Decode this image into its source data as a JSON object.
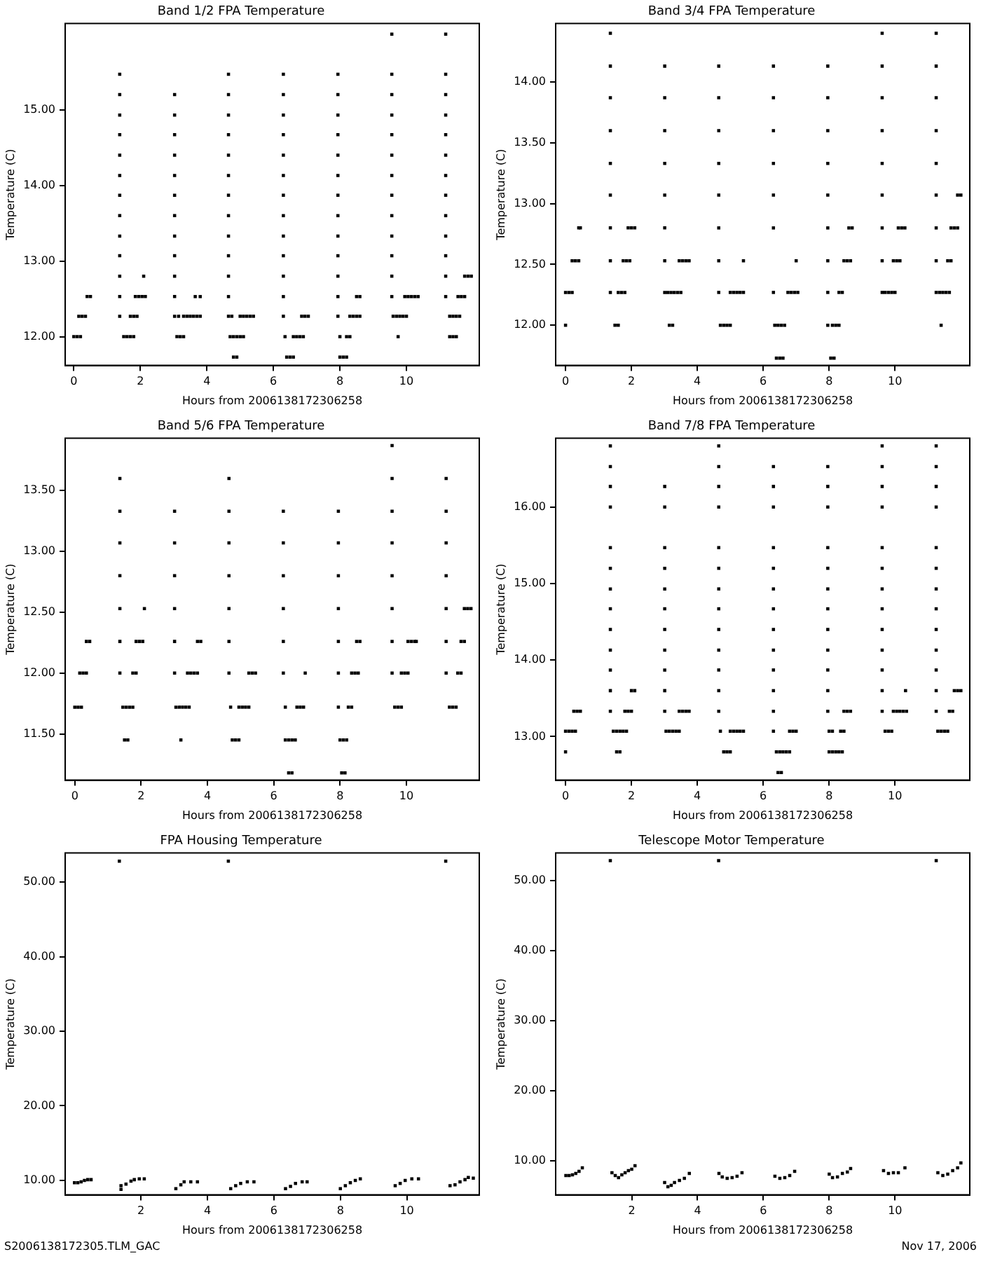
{
  "chart_data": [
    {
      "type": "scatter",
      "title": "Band 1/2 FPA Temperature",
      "xlabel": "Hours from 2006138172306258",
      "ylabel": "Temperature (C)",
      "marker": "square",
      "legend": false,
      "xlim": [
        -0.26,
        12.19
      ],
      "xticks": [
        0,
        2,
        4,
        6,
        8,
        10
      ],
      "ylim": [
        11.62,
        16.14
      ],
      "yticks": [
        {
          "value": 12,
          "label": "12.00"
        },
        {
          "value": 13,
          "label": "13.00"
        },
        {
          "value": 14,
          "label": "14.00"
        },
        {
          "value": 15,
          "label": "15.00"
        }
      ],
      "series": [
        {
          "color": "#000000",
          "x": [
            0,
            0.1,
            0.2,
            0.15,
            0.25,
            0.35,
            0.4,
            0.5,
            1.38,
            1.38,
            1.38,
            1.38,
            1.38,
            1.38,
            1.38,
            1.38,
            1.38,
            1.38,
            1.38,
            1.38,
            1.38,
            1.5,
            1.6,
            1.7,
            1.8,
            1.7,
            1.8,
            1.9,
            1.85,
            1.95,
            2.05,
            2.15,
            2.1,
            3.03,
            3.03,
            3.03,
            3.03,
            3.03,
            3.03,
            3.03,
            3.03,
            3.03,
            3.03,
            3.03,
            3.03,
            3.1,
            3.2,
            3.3,
            3.15,
            3.3,
            3.4,
            3.5,
            3.6,
            3.7,
            3.8,
            3.65,
            3.8,
            4.65,
            4.65,
            4.65,
            4.65,
            4.65,
            4.65,
            4.65,
            4.65,
            4.65,
            4.65,
            4.65,
            4.65,
            4.65,
            4.75,
            5.0,
            5.1,
            5.2,
            5.3,
            5.4,
            4.7,
            4.8,
            4.9,
            5.0,
            5.1,
            4.8,
            4.9,
            6.3,
            6.3,
            6.3,
            6.3,
            6.3,
            6.3,
            6.3,
            6.3,
            6.3,
            6.3,
            6.3,
            6.3,
            6.3,
            6.35,
            6.6,
            6.7,
            6.8,
            6.9,
            6.85,
            6.95,
            7.05,
            6.4,
            6.5,
            6.6,
            7.94,
            7.94,
            7.94,
            7.94,
            7.94,
            7.94,
            7.94,
            7.94,
            7.94,
            7.94,
            7.94,
            7.94,
            7.94,
            8.0,
            8.2,
            8.3,
            8.0,
            8.1,
            8.2,
            8.3,
            8.4,
            8.5,
            8.6,
            8.5,
            8.6,
            9.56,
            9.56,
            9.56,
            9.56,
            9.56,
            9.56,
            9.56,
            9.56,
            9.56,
            9.56,
            9.56,
            9.56,
            9.56,
            9.6,
            9.7,
            9.8,
            9.9,
            10.0,
            9.75,
            9.95,
            10.05,
            10.15,
            10.25,
            10.35,
            11.18,
            11.18,
            11.18,
            11.18,
            11.18,
            11.18,
            11.18,
            11.18,
            11.18,
            11.18,
            11.18,
            11.18,
            11.18,
            11.3,
            11.4,
            11.5,
            11.6,
            11.3,
            11.4,
            11.5,
            11.55,
            11.65,
            11.75,
            11.75,
            11.85,
            11.95
          ],
          "values": [
            12,
            12,
            12,
            12.27,
            12.27,
            12.27,
            12.53,
            12.53,
            15.47,
            15.2,
            14.93,
            14.67,
            14.4,
            14.13,
            13.87,
            13.6,
            13.33,
            13.07,
            12.8,
            12.53,
            12.27,
            12,
            12,
            12,
            12,
            12.27,
            12.27,
            12.27,
            12.53,
            12.53,
            12.53,
            12.53,
            12.8,
            15.2,
            14.93,
            14.67,
            14.4,
            14.13,
            13.87,
            13.6,
            13.33,
            13.07,
            12.8,
            12.53,
            12.27,
            12,
            12,
            12,
            12.27,
            12.27,
            12.27,
            12.27,
            12.27,
            12.27,
            12.27,
            12.53,
            12.53,
            15.47,
            15.2,
            14.93,
            14.67,
            14.4,
            14.13,
            13.87,
            13.6,
            13.33,
            13.07,
            12.8,
            12.53,
            12.27,
            12.27,
            12.27,
            12.27,
            12.27,
            12.27,
            12.27,
            12,
            12,
            12,
            12,
            12,
            11.73,
            11.73,
            15.47,
            15.2,
            14.93,
            14.67,
            14.4,
            14.13,
            13.87,
            13.6,
            13.33,
            13.07,
            12.8,
            12.53,
            12.27,
            12,
            12,
            12,
            12,
            12,
            12.27,
            12.27,
            12.27,
            11.73,
            11.73,
            11.73,
            15.47,
            15.2,
            14.93,
            14.67,
            14.4,
            14.13,
            13.87,
            13.6,
            13.33,
            13.07,
            12.8,
            12.53,
            12.27,
            12,
            12,
            12,
            11.73,
            11.73,
            11.73,
            12.27,
            12.27,
            12.27,
            12.27,
            12.53,
            12.53,
            16,
            15.47,
            15.2,
            14.93,
            14.67,
            14.4,
            14.13,
            13.87,
            13.6,
            13.33,
            13.07,
            12.8,
            12.53,
            12.27,
            12.27,
            12.27,
            12.27,
            12.27,
            12,
            12.53,
            12.53,
            12.53,
            12.53,
            12.53,
            16,
            15.47,
            15.2,
            14.93,
            14.67,
            14.4,
            14.13,
            13.87,
            13.6,
            13.33,
            13.07,
            12.8,
            12.53,
            12.27,
            12.27,
            12.27,
            12.27,
            12,
            12,
            12,
            12.53,
            12.53,
            12.53,
            12.8,
            12.8,
            12.8
          ]
        }
      ]
    },
    {
      "type": "scatter",
      "title": "Band 3/4 FPA Temperature",
      "xlabel": "Hours from 2006138172306258",
      "ylabel": "Temperature (C)",
      "marker": "square",
      "legend": false,
      "xlim": [
        -0.3,
        12.27
      ],
      "xticks": [
        0,
        2,
        4,
        6,
        8,
        10
      ],
      "ylim": [
        11.67,
        14.48
      ],
      "yticks": [
        {
          "value": 12,
          "label": "12.00"
        },
        {
          "value": 12.5,
          "label": "12.50"
        },
        {
          "value": 13,
          "label": "13.00"
        },
        {
          "value": 13.5,
          "label": "13.50"
        },
        {
          "value": 14,
          "label": "14.00"
        }
      ],
      "series": [
        {
          "color": "#000000",
          "x": [
            0,
            0,
            0.1,
            0.2,
            0.2,
            0.3,
            0.4,
            0.4,
            0.45,
            1.36,
            1.36,
            1.36,
            1.36,
            1.36,
            1.36,
            1.36,
            1.36,
            1.36,
            1.6,
            1.7,
            1.8,
            1.5,
            1.6,
            1.75,
            1.85,
            1.95,
            1.9,
            2.0,
            2.1,
            3.01,
            3.01,
            3.01,
            3.01,
            3.01,
            3.01,
            3.01,
            3.01,
            3.1,
            3.2,
            3.3,
            3.4,
            3.5,
            3.15,
            3.25,
            3.45,
            3.55,
            3.65,
            3.75,
            4.65,
            4.65,
            4.65,
            4.65,
            4.65,
            4.65,
            4.65,
            4.65,
            5.0,
            5.1,
            5.2,
            5.3,
            5.4,
            4.7,
            4.8,
            4.9,
            5.0,
            5.4,
            6.31,
            6.31,
            6.31,
            6.31,
            6.31,
            6.31,
            6.31,
            6.75,
            6.85,
            6.95,
            7.05,
            6.35,
            6.45,
            6.55,
            6.65,
            6.4,
            6.5,
            6.6,
            7.0,
            7.96,
            7.96,
            7.96,
            7.96,
            7.96,
            7.96,
            7.96,
            7.96,
            7.96,
            8.1,
            8.2,
            8.3,
            8.05,
            8.15,
            8.3,
            8.4,
            8.45,
            8.55,
            8.65,
            8.6,
            8.7,
            9.61,
            9.61,
            9.61,
            9.61,
            9.61,
            9.61,
            9.61,
            9.61,
            9.61,
            9.7,
            9.8,
            9.9,
            10.0,
            9.95,
            10.05,
            10.15,
            10.1,
            10.2,
            10.3,
            11.25,
            11.25,
            11.25,
            11.25,
            11.25,
            11.25,
            11.25,
            11.25,
            11.25,
            11.35,
            11.45,
            11.55,
            11.65,
            11.4,
            11.6,
            11.7,
            11.7,
            11.8,
            11.9,
            11.9,
            12.0
          ],
          "values": [
            12,
            12.27,
            12.27,
            12.27,
            12.53,
            12.53,
            12.53,
            12.8,
            12.8,
            14.4,
            14.13,
            13.87,
            13.6,
            13.33,
            13.07,
            12.8,
            12.53,
            12.27,
            12.27,
            12.27,
            12.27,
            12,
            12,
            12.53,
            12.53,
            12.53,
            12.8,
            12.8,
            12.8,
            14.13,
            13.87,
            13.6,
            13.33,
            13.07,
            12.8,
            12.53,
            12.27,
            12.27,
            12.27,
            12.27,
            12.27,
            12.27,
            12,
            12,
            12.53,
            12.53,
            12.53,
            12.53,
            14.13,
            13.87,
            13.6,
            13.33,
            13.07,
            12.8,
            12.53,
            12.27,
            12.27,
            12.27,
            12.27,
            12.27,
            12.27,
            12,
            12,
            12,
            12,
            12.53,
            14.13,
            13.87,
            13.6,
            13.33,
            13.07,
            12.8,
            12.27,
            12.27,
            12.27,
            12.27,
            12.27,
            12,
            12,
            12,
            12,
            11.73,
            11.73,
            11.73,
            12.53,
            14.13,
            13.87,
            13.6,
            13.33,
            13.07,
            12.8,
            12.53,
            12.27,
            12,
            12,
            12,
            12,
            11.73,
            11.73,
            12.27,
            12.27,
            12.53,
            12.53,
            12.53,
            12.8,
            12.8,
            14.4,
            14.13,
            13.87,
            13.6,
            13.33,
            13.07,
            12.8,
            12.53,
            12.27,
            12.27,
            12.27,
            12.27,
            12.27,
            12.53,
            12.53,
            12.53,
            12.8,
            12.8,
            12.8,
            14.4,
            14.13,
            13.87,
            13.6,
            13.33,
            13.07,
            12.8,
            12.53,
            12.27,
            12.27,
            12.27,
            12.27,
            12.27,
            12,
            12.53,
            12.53,
            12.8,
            12.8,
            12.8,
            13.07,
            13.07
          ]
        }
      ]
    },
    {
      "type": "scatter",
      "title": "Band 5/6 FPA Temperature",
      "xlabel": "Hours from 2006138172306258",
      "ylabel": "Temperature (C)",
      "marker": "square",
      "legend": false,
      "xlim": [
        -0.29,
        12.2
      ],
      "xticks": [
        0,
        2,
        4,
        6,
        8,
        10
      ],
      "ylim": [
        11.12,
        13.93
      ],
      "yticks": [
        {
          "value": 11.5,
          "label": "11.50"
        },
        {
          "value": 12,
          "label": "12.00"
        },
        {
          "value": 12.5,
          "label": "12.50"
        },
        {
          "value": 13,
          "label": "13.00"
        },
        {
          "value": 13.5,
          "label": "13.50"
        }
      ],
      "series": [
        {
          "color": "#000000",
          "x": [
            0,
            0.1,
            0.2,
            0.15,
            0.25,
            0.35,
            0.35,
            0.45,
            1.36,
            1.36,
            1.36,
            1.36,
            1.36,
            1.36,
            1.36,
            1.45,
            1.55,
            1.65,
            1.75,
            1.5,
            1.6,
            1.75,
            1.85,
            1.85,
            1.95,
            2.05,
            2.1,
            3.01,
            3.01,
            3.01,
            3.01,
            3.01,
            3.01,
            3.05,
            3.15,
            3.25,
            3.35,
            3.45,
            3.2,
            3.4,
            3.5,
            3.6,
            3.7,
            3.7,
            3.8,
            4.65,
            4.65,
            4.65,
            4.65,
            4.65,
            4.65,
            4.65,
            4.7,
            4.95,
            5.05,
            5.15,
            5.25,
            4.75,
            4.85,
            4.95,
            5.25,
            5.35,
            5.45,
            6.29,
            6.29,
            6.29,
            6.29,
            6.29,
            6.29,
            6.35,
            6.7,
            6.8,
            6.9,
            6.35,
            6.45,
            6.55,
            6.65,
            6.45,
            6.55,
            6.95,
            7.95,
            7.95,
            7.95,
            7.95,
            7.95,
            7.95,
            7.95,
            8.25,
            8.35,
            8.0,
            8.1,
            8.2,
            8.05,
            8.15,
            8.35,
            8.45,
            8.55,
            8.5,
            8.6,
            9.57,
            9.57,
            9.57,
            9.57,
            9.57,
            9.57,
            9.57,
            9.57,
            9.65,
            9.75,
            9.85,
            9.85,
            9.95,
            10.05,
            10.05,
            10.15,
            10.25,
            10.3,
            11.2,
            11.2,
            11.2,
            11.2,
            11.2,
            11.2,
            11.2,
            11.3,
            11.4,
            11.5,
            11.55,
            11.65,
            11.65,
            11.75,
            11.75,
            11.85,
            11.95
          ],
          "values": [
            11.72,
            11.72,
            11.72,
            12,
            12,
            12,
            12.26,
            12.26,
            13.6,
            13.33,
            13.07,
            12.8,
            12.53,
            12.26,
            12,
            11.72,
            11.72,
            11.72,
            11.72,
            11.45,
            11.45,
            12,
            12,
            12.26,
            12.26,
            12.26,
            12.53,
            13.33,
            13.07,
            12.8,
            12.53,
            12.26,
            12,
            11.72,
            11.72,
            11.72,
            11.72,
            11.72,
            11.45,
            12,
            12,
            12,
            12,
            12.26,
            12.26,
            13.6,
            13.33,
            13.07,
            12.8,
            12.53,
            12.26,
            12,
            11.72,
            11.72,
            11.72,
            11.72,
            11.72,
            11.45,
            11.45,
            11.45,
            12,
            12,
            12,
            13.33,
            13.07,
            12.8,
            12.53,
            12.26,
            12,
            11.72,
            11.72,
            11.72,
            11.72,
            11.45,
            11.45,
            11.45,
            11.45,
            11.18,
            11.18,
            12,
            13.33,
            13.07,
            12.8,
            12.53,
            12.26,
            12,
            11.72,
            11.72,
            11.72,
            11.45,
            11.45,
            11.45,
            11.18,
            11.18,
            12,
            12,
            12,
            12.26,
            12.26,
            13.87,
            13.6,
            13.33,
            13.07,
            12.8,
            12.53,
            12.26,
            12,
            11.72,
            11.72,
            11.72,
            12,
            12,
            12,
            12.26,
            12.26,
            12.26,
            12.26,
            13.6,
            13.33,
            13.07,
            12.8,
            12.53,
            12.26,
            12,
            11.72,
            11.72,
            11.72,
            12,
            12,
            12.26,
            12.26,
            12.53,
            12.53,
            12.53
          ]
        }
      ]
    },
    {
      "type": "scatter",
      "title": "Band 7/8 FPA Temperature",
      "xlabel": "Hours from 2006138172306258",
      "ylabel": "Temperature (C)",
      "marker": "square",
      "legend": false,
      "xlim": [
        -0.3,
        12.27
      ],
      "xticks": [
        0,
        2,
        4,
        6,
        8,
        10
      ],
      "ylim": [
        12.43,
        16.9
      ],
      "yticks": [
        {
          "value": 13,
          "label": "13.00"
        },
        {
          "value": 14,
          "label": "14.00"
        },
        {
          "value": 15,
          "label": "15.00"
        },
        {
          "value": 16,
          "label": "16.00"
        }
      ],
      "series": [
        {
          "color": "#000000",
          "x": [
            0,
            0,
            0.1,
            0.2,
            0.3,
            0.25,
            0.35,
            0.45,
            1.36,
            1.36,
            1.36,
            1.36,
            1.36,
            1.36,
            1.36,
            1.36,
            1.36,
            1.36,
            1.36,
            1.36,
            1.36,
            1.45,
            1.55,
            1.65,
            1.75,
            1.85,
            1.55,
            1.65,
            1.8,
            1.9,
            2.0,
            2.0,
            2.1,
            3.01,
            3.01,
            3.01,
            3.01,
            3.01,
            3.01,
            3.01,
            3.01,
            3.01,
            3.01,
            3.01,
            3.05,
            3.15,
            3.25,
            3.35,
            3.45,
            3.45,
            3.55,
            3.65,
            3.75,
            4.65,
            4.65,
            4.65,
            4.65,
            4.65,
            4.65,
            4.65,
            4.65,
            4.65,
            4.65,
            4.65,
            4.65,
            4.65,
            4.7,
            5.0,
            5.1,
            5.2,
            5.3,
            5.4,
            4.8,
            4.9,
            5.0,
            6.31,
            6.31,
            6.31,
            6.31,
            6.31,
            6.31,
            6.31,
            6.31,
            6.31,
            6.31,
            6.31,
            6.31,
            6.31,
            6.8,
            6.9,
            7.0,
            6.4,
            6.5,
            6.6,
            6.7,
            6.8,
            6.45,
            6.55,
            7.96,
            7.96,
            7.96,
            7.96,
            7.96,
            7.96,
            7.96,
            7.96,
            7.96,
            7.96,
            7.96,
            7.96,
            8.0,
            8.1,
            8.35,
            8.45,
            8.0,
            8.1,
            8.2,
            8.3,
            8.4,
            8.45,
            8.55,
            8.65,
            9.61,
            9.61,
            9.61,
            9.61,
            9.61,
            9.61,
            9.61,
            9.61,
            9.61,
            9.61,
            9.61,
            9.61,
            9.61,
            9.7,
            9.8,
            9.9,
            9.95,
            10.05,
            10.15,
            10.25,
            10.35,
            10.32,
            11.25,
            11.25,
            11.25,
            11.25,
            11.25,
            11.25,
            11.25,
            11.25,
            11.25,
            11.25,
            11.25,
            11.25,
            11.25,
            11.3,
            11.4,
            11.5,
            11.6,
            11.65,
            11.75,
            11.8,
            11.9,
            12.0
          ],
          "values": [
            12.8,
            13.07,
            13.07,
            13.07,
            13.07,
            13.33,
            13.33,
            13.33,
            16.8,
            16.53,
            16.27,
            16,
            15.47,
            15.2,
            14.93,
            14.67,
            14.4,
            14.13,
            13.87,
            13.6,
            13.33,
            13.07,
            13.07,
            13.07,
            13.07,
            13.07,
            12.8,
            12.8,
            13.33,
            13.33,
            13.33,
            13.6,
            13.6,
            16.27,
            16,
            15.47,
            15.2,
            14.93,
            14.67,
            14.4,
            14.13,
            13.87,
            13.6,
            13.33,
            13.07,
            13.07,
            13.07,
            13.07,
            13.07,
            13.33,
            13.33,
            13.33,
            13.33,
            16.8,
            16.53,
            16.27,
            16,
            15.47,
            15.2,
            14.93,
            14.67,
            14.4,
            14.13,
            13.87,
            13.6,
            13.33,
            13.07,
            13.07,
            13.07,
            13.07,
            13.07,
            13.07,
            12.8,
            12.8,
            12.8,
            16.53,
            16.27,
            16,
            15.47,
            15.2,
            14.93,
            14.67,
            14.4,
            14.13,
            13.87,
            13.6,
            13.33,
            13.07,
            13.07,
            13.07,
            13.07,
            12.8,
            12.8,
            12.8,
            12.8,
            12.8,
            12.53,
            12.53,
            16.53,
            16.27,
            16,
            15.47,
            15.2,
            14.93,
            14.67,
            14.4,
            14.13,
            13.87,
            13.6,
            13.33,
            13.07,
            13.07,
            13.07,
            13.07,
            12.8,
            12.8,
            12.8,
            12.8,
            12.8,
            13.33,
            13.33,
            13.33,
            16.8,
            16.53,
            16.27,
            16,
            15.47,
            15.2,
            14.93,
            14.67,
            14.4,
            14.13,
            13.87,
            13.6,
            13.33,
            13.07,
            13.07,
            13.07,
            13.33,
            13.33,
            13.33,
            13.33,
            13.33,
            13.6,
            16.8,
            16.53,
            16.27,
            16,
            15.47,
            15.2,
            14.93,
            14.67,
            14.4,
            14.13,
            13.87,
            13.6,
            13.33,
            13.07,
            13.07,
            13.07,
            13.07,
            13.33,
            13.33,
            13.6,
            13.6,
            13.6
          ]
        }
      ]
    },
    {
      "type": "scatter",
      "title": "FPA Housing Temperature",
      "xlabel": "Hours from 2006138172306258",
      "ylabel": "Temperature (C)",
      "marker": "square",
      "legend": false,
      "annotations": [
        "S2006138172305.TLM_GAC"
      ],
      "xlim": [
        -0.28,
        12.18
      ],
      "xticks": [
        2,
        4,
        6,
        8,
        10
      ],
      "ylim": [
        8.06,
        53.9
      ],
      "yticks": [
        {
          "value": 10,
          "label": "10.00"
        },
        {
          "value": 20,
          "label": "20.00"
        },
        {
          "value": 30,
          "label": "30.00"
        },
        {
          "value": 40,
          "label": "40.00"
        },
        {
          "value": 50,
          "label": "50.00"
        }
      ],
      "series": [
        {
          "color": "#000000",
          "x": [
            0,
            0.1,
            0.2,
            0.3,
            0.4,
            0.5,
            1.35,
            1.4,
            1.4,
            1.55,
            1.7,
            1.8,
            1.95,
            2.1,
            3.05,
            3.2,
            3.3,
            3.5,
            3.7,
            4.63,
            4.7,
            4.85,
            5.0,
            5.2,
            5.4,
            6.35,
            6.5,
            6.65,
            6.85,
            7.0,
            8.0,
            8.15,
            8.3,
            8.45,
            8.6,
            9.65,
            9.8,
            9.95,
            10.15,
            10.35,
            11.17,
            11.3,
            11.45,
            11.6,
            11.75,
            11.85,
            12.0
          ],
          "values": [
            9.7,
            9.7,
            9.8,
            10.0,
            10.1,
            10.1,
            52.8,
            8.8,
            9.3,
            9.5,
            9.9,
            10.1,
            10.2,
            10.2,
            8.9,
            9.4,
            9.8,
            9.8,
            9.8,
            52.8,
            8.9,
            9.3,
            9.6,
            9.8,
            9.8,
            8.9,
            9.2,
            9.6,
            9.8,
            9.8,
            8.9,
            9.3,
            9.7,
            10.0,
            10.2,
            9.3,
            9.6,
            10.0,
            10.2,
            10.2,
            52.8,
            9.3,
            9.4,
            9.8,
            10.1,
            10.4,
            10.3
          ]
        }
      ]
    },
    {
      "type": "scatter",
      "title": "Telescope Motor Temperature",
      "xlabel": "Hours from 2006138172306258",
      "ylabel": "Temperature (C)",
      "marker": "square",
      "legend": false,
      "annotations": [
        "Nov 17, 2006"
      ],
      "xlim": [
        -0.31,
        12.27
      ],
      "xticks": [
        2,
        4,
        6,
        8,
        10
      ],
      "ylim": [
        5.14,
        53.9
      ],
      "yticks": [
        {
          "value": 10,
          "label": "10.00"
        },
        {
          "value": 20,
          "label": "20.00"
        },
        {
          "value": 30,
          "label": "30.00"
        },
        {
          "value": 40,
          "label": "40.00"
        },
        {
          "value": 50,
          "label": "50.00"
        }
      ],
      "series": [
        {
          "color": "#000000",
          "x": [
            0,
            0.1,
            0.2,
            0.3,
            0.4,
            0.5,
            1.35,
            1.4,
            1.5,
            1.6,
            1.7,
            1.8,
            1.9,
            2.0,
            2.1,
            3.0,
            3.1,
            3.2,
            3.3,
            3.45,
            3.6,
            3.75,
            4.64,
            4.65,
            4.75,
            4.9,
            5.05,
            5.2,
            5.35,
            6.35,
            6.5,
            6.65,
            6.8,
            6.95,
            8.0,
            8.1,
            8.25,
            8.4,
            8.55,
            8.65,
            9.65,
            9.8,
            9.95,
            10.1,
            10.3,
            11.25,
            11.3,
            11.45,
            11.6,
            11.75,
            11.9,
            12.0
          ],
          "values": [
            7.9,
            7.9,
            8.0,
            8.2,
            8.5,
            9.0,
            52.8,
            8.3,
            7.9,
            7.6,
            8.0,
            8.3,
            8.6,
            8.8,
            9.3,
            6.9,
            6.3,
            6.5,
            6.9,
            7.2,
            7.5,
            8.2,
            52.8,
            8.2,
            7.7,
            7.5,
            7.6,
            7.8,
            8.3,
            7.8,
            7.5,
            7.6,
            7.9,
            8.5,
            8.1,
            7.6,
            7.7,
            8.2,
            8.4,
            8.9,
            8.6,
            8.2,
            8.3,
            8.3,
            9.0,
            52.8,
            8.3,
            7.9,
            8.1,
            8.6,
            9.0,
            9.7
          ]
        }
      ]
    }
  ]
}
